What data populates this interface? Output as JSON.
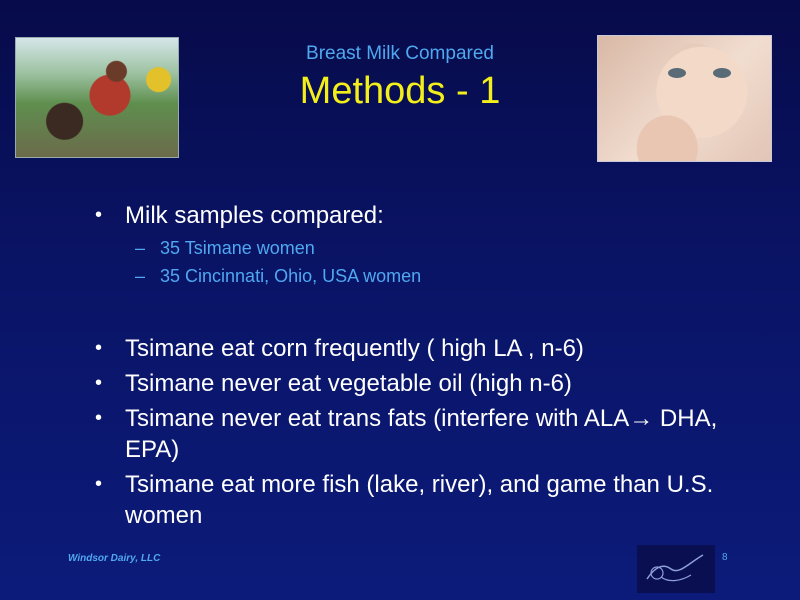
{
  "slide": {
    "subtitle": "Breast Milk Compared",
    "title": "Methods - 1",
    "bullets": [
      {
        "text": "Milk samples compared:",
        "subs": [
          "35 Tsimane women",
          "35 Cincinnati, Ohio, USA women"
        ]
      },
      {
        "text": "Tsimane eat corn frequently ( high LA , n-6)"
      },
      {
        "text": "Tsimane never eat vegetable oil (high n-6)"
      },
      {
        "text": "Tsimane never eat trans fats (interfere with ALA→ DHA, EPA)"
      },
      {
        "text": "Tsimane eat more fish (lake, river), and game than U.S. women"
      }
    ],
    "footer": {
      "company": "Windsor Dairy, LLC",
      "page_number": "8"
    }
  },
  "colors": {
    "title": "#f2ef1a",
    "subtitle": "#4fa8f0",
    "background": "#0a1466",
    "bullet_text": "#ffffff"
  }
}
